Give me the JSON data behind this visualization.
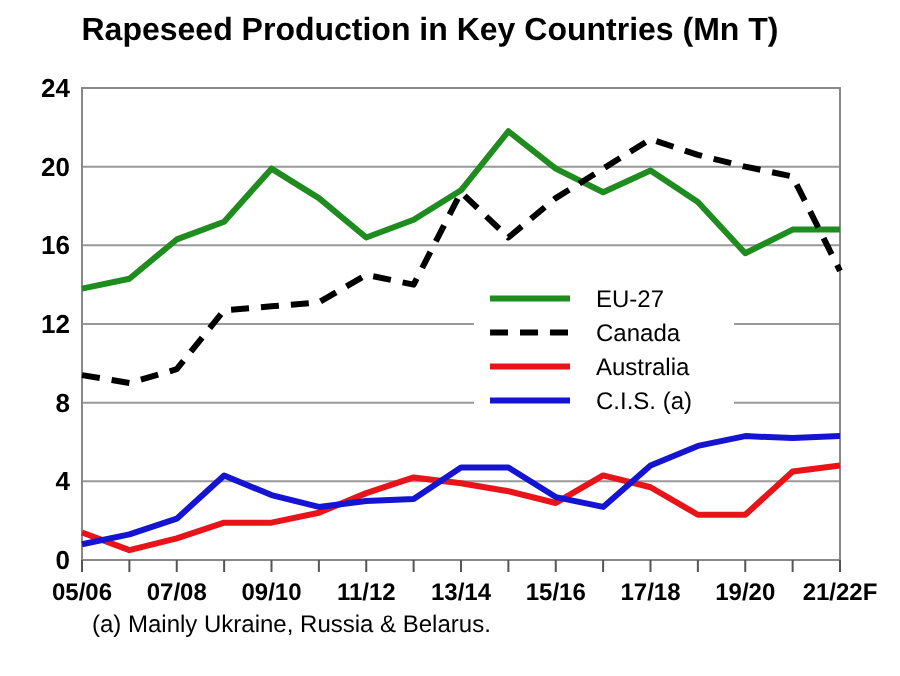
{
  "chart_data": {
    "type": "line",
    "title": "Rapeseed Production in Key Countries (Mn T)",
    "categories": [
      "05/06",
      null,
      "07/08",
      null,
      "09/10",
      null,
      "11/12",
      null,
      "13/14",
      null,
      "15/16",
      null,
      "17/18",
      null,
      "19/20",
      null,
      "21/22F"
    ],
    "series": [
      {
        "name": "EU-27",
        "color": "#1e8c1e",
        "line_style": "solid",
        "values": [
          13.8,
          14.3,
          16.3,
          17.2,
          19.9,
          18.4,
          16.4,
          17.3,
          18.8,
          21.8,
          19.9,
          18.7,
          19.8,
          18.2,
          15.6,
          16.8,
          16.8
        ]
      },
      {
        "name": "Canada",
        "color": "#000000",
        "line_style": "dashed",
        "values": [
          9.4,
          9.0,
          9.7,
          12.7,
          12.9,
          13.1,
          14.5,
          14.0,
          18.7,
          16.4,
          18.4,
          19.9,
          21.4,
          20.6,
          20.0,
          19.5,
          14.7
        ]
      },
      {
        "name": "Australia",
        "color": "#e8141a",
        "line_style": "solid",
        "values": [
          1.4,
          0.5,
          1.1,
          1.9,
          1.9,
          2.4,
          3.4,
          4.2,
          3.9,
          3.5,
          2.9,
          4.3,
          3.7,
          2.3,
          2.3,
          4.5,
          4.8
        ]
      },
      {
        "name": "C.I.S. (a)",
        "color": "#1414d2",
        "line_style": "solid",
        "values": [
          0.8,
          1.3,
          2.1,
          4.3,
          3.3,
          2.7,
          3.0,
          3.1,
          4.7,
          4.7,
          3.2,
          2.7,
          4.8,
          5.8,
          6.3,
          6.2,
          6.3
        ]
      }
    ],
    "ylim": [
      0,
      24
    ],
    "yticks": [
      0,
      4,
      8,
      12,
      16,
      20,
      24
    ],
    "grid": "y",
    "legend": "right",
    "annotations": [
      "(a) Mainly Ukraine, Russia & Belarus."
    ]
  }
}
